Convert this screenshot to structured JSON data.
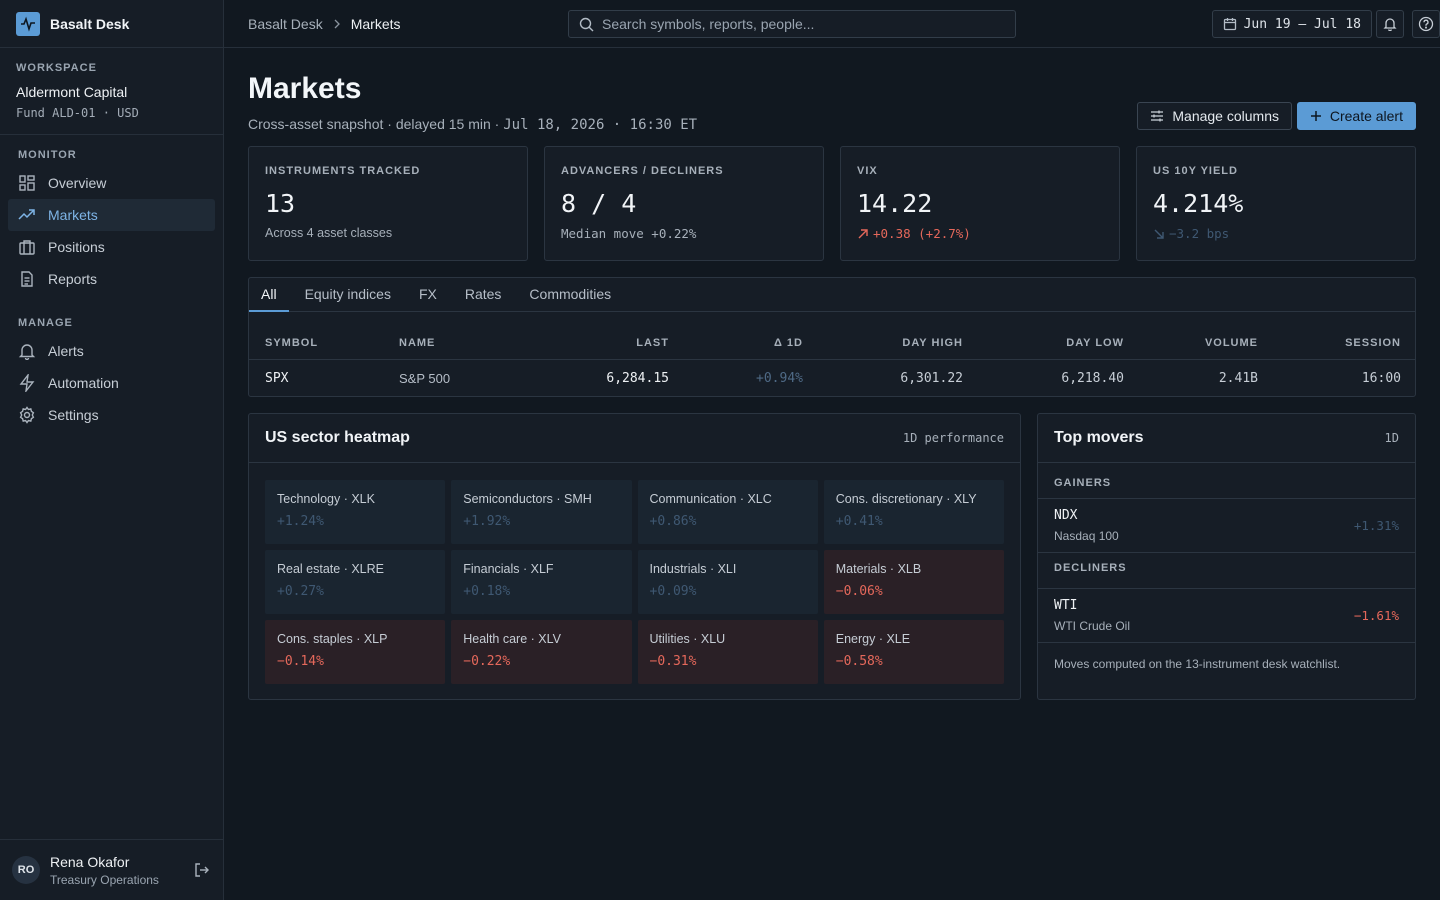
{
  "app": {
    "name": "Basalt Desk",
    "accent": "#5b9bd5",
    "negative_color": "#e5685b",
    "positive_color": "#3f5872"
  },
  "workspace": {
    "caption": "WORKSPACE",
    "name": "Aldermont Capital",
    "fund": "Fund ALD-01 · USD"
  },
  "nav": {
    "monitor_caption": "MONITOR",
    "manage_caption": "MANAGE",
    "monitor": [
      {
        "label": "Overview",
        "icon": "grid-icon"
      },
      {
        "label": "Markets",
        "icon": "trend-up-icon",
        "active": true
      },
      {
        "label": "Positions",
        "icon": "briefcase-icon"
      },
      {
        "label": "Reports",
        "icon": "document-icon"
      }
    ],
    "manage": [
      {
        "label": "Alerts",
        "icon": "bell-icon"
      },
      {
        "label": "Automation",
        "icon": "lightning-icon"
      },
      {
        "label": "Settings",
        "icon": "gear-icon"
      }
    ]
  },
  "user": {
    "initials": "RO",
    "name": "Rena Okafor",
    "role": "Treasury Operations"
  },
  "topbar": {
    "breadcrumb_root": "Basalt Desk",
    "breadcrumb_current": "Markets",
    "search_placeholder": "Search symbols, reports, people...",
    "date_range": "Jun 19 – Jul 18"
  },
  "page": {
    "title": "Markets",
    "subtitle": "Cross-asset snapshot · delayed 15 min · ",
    "timestamp": "Jul 18, 2026 · 16:30 ET",
    "manage_columns": "Manage columns",
    "create_alert": "Create alert"
  },
  "kpis": [
    {
      "label": "INSTRUMENTS TRACKED",
      "value": "13",
      "foot": "Across 4 asset classes"
    },
    {
      "label": "ADVANCERS / DECLINERS",
      "value": "8 / 4",
      "foot": "Median move +0.22%"
    },
    {
      "label": "VIX",
      "value": "14.22",
      "foot": "+0.38 (+2.7%)"
    },
    {
      "label": "US 10Y YIELD",
      "value": "4.214%",
      "foot": "−3.2 bps"
    }
  ],
  "tabs": [
    "All",
    "Equity indices",
    "FX",
    "Rates",
    "Commodities"
  ],
  "table": {
    "headers": [
      "SYMBOL",
      "NAME",
      "LAST",
      "Δ 1D",
      "DAY HIGH",
      "DAY LOW",
      "VOLUME",
      "SESSION"
    ],
    "rows": [
      [
        "SPX",
        "S&P 500",
        "6,284.15",
        "+0.94%",
        "6,301.22",
        "6,218.40",
        "2.41B",
        "16:00"
      ]
    ]
  },
  "heatmap": {
    "title": "US sector heatmap",
    "meta": "1D performance",
    "tiles": [
      {
        "name": "Technology · XLK",
        "value": "+1.24%",
        "dir": "up"
      },
      {
        "name": "Semiconductors · SMH",
        "value": "+1.92%",
        "dir": "up"
      },
      {
        "name": "Communication · XLC",
        "value": "+0.86%",
        "dir": "up"
      },
      {
        "name": "Cons. discretionary · XLY",
        "value": "+0.41%",
        "dir": "up"
      },
      {
        "name": "Real estate · XLRE",
        "value": "+0.27%",
        "dir": "up"
      },
      {
        "name": "Financials · XLF",
        "value": "+0.18%",
        "dir": "up"
      },
      {
        "name": "Industrials · XLI",
        "value": "+0.09%",
        "dir": "up"
      },
      {
        "name": "Materials · XLB",
        "value": "−0.06%",
        "dir": "down"
      },
      {
        "name": "Cons. staples · XLP",
        "value": "−0.14%",
        "dir": "down"
      },
      {
        "name": "Health care · XLV",
        "value": "−0.22%",
        "dir": "down"
      },
      {
        "name": "Utilities · XLU",
        "value": "−0.31%",
        "dir": "down"
      },
      {
        "name": "Energy · XLE",
        "value": "−0.58%",
        "dir": "down"
      }
    ]
  },
  "movers": {
    "title": "Top movers",
    "meta": "1D",
    "gainers_caption": "GAINERS",
    "decliners_caption": "DECLINERS",
    "gainers": [
      {
        "symbol": "NDX",
        "name": "Nasdaq 100",
        "change": "+1.31%"
      }
    ],
    "decliners": [
      {
        "symbol": "WTI",
        "name": "WTI Crude Oil",
        "change": "−1.61%"
      }
    ],
    "note": "Moves computed on the 13-instrument desk watchlist."
  }
}
